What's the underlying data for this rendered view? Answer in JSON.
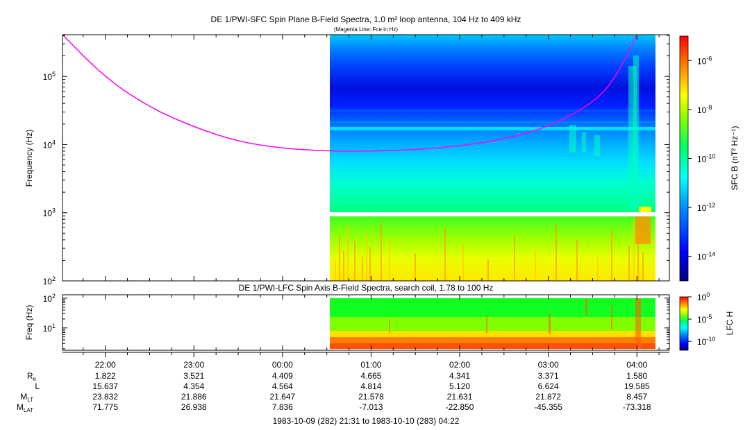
{
  "colors": {
    "fce_line": "#ff00ff",
    "gap": "#ffffff",
    "frame": "#000000"
  },
  "chart_data": [
    {
      "type": "heatmap",
      "title": "DE 1/PWI-SFC  Spin Plane B-Field Spectra, 1.0 m² loop antenna, 104 Hz to 409 kHz",
      "subtitle": "(Magenta Line: Fce in Hz)",
      "ylabel": "Frequency (Hz)",
      "yscale": "log",
      "ylim": [
        100,
        409000
      ],
      "y_ticks": [
        {
          "base": "10",
          "exp": "2"
        },
        {
          "base": "10",
          "exp": "3"
        },
        {
          "base": "10",
          "exp": "4"
        },
        {
          "base": "10",
          "exp": "5"
        }
      ],
      "colorbar": {
        "label": "SFC B (nT² Hz⁻¹)",
        "scale": "log",
        "range": [
          1e-15,
          1e-05
        ],
        "ticks": [
          {
            "base": "10",
            "exp": "-6"
          },
          {
            "base": "10",
            "exp": "-8"
          },
          {
            "base": "10",
            "exp": "-10"
          },
          {
            "base": "10",
            "exp": "-12"
          },
          {
            "base": "10",
            "exp": "-14"
          }
        ]
      },
      "data_start": "00:32",
      "data_end": "04:11",
      "gap_band_hz": [
        900,
        1000
      ],
      "fce_curve": [
        {
          "t": "21:31",
          "f_hz": 409000
        },
        {
          "t": "22:00",
          "f_hz": 95000
        },
        {
          "t": "22:30",
          "f_hz": 35000
        },
        {
          "t": "23:00",
          "f_hz": 18000
        },
        {
          "t": "23:30",
          "f_hz": 11000
        },
        {
          "t": "00:00",
          "f_hz": 8800
        },
        {
          "t": "00:30",
          "f_hz": 8000
        },
        {
          "t": "01:00",
          "f_hz": 8000
        },
        {
          "t": "01:30",
          "f_hz": 8400
        },
        {
          "t": "02:00",
          "f_hz": 9500
        },
        {
          "t": "02:30",
          "f_hz": 12000
        },
        {
          "t": "03:00",
          "f_hz": 18000
        },
        {
          "t": "03:30",
          "f_hz": 40000
        },
        {
          "t": "03:45",
          "f_hz": 90000
        },
        {
          "t": "04:00",
          "f_hz": 409000
        }
      ]
    },
    {
      "type": "heatmap",
      "title": "DE 1/PWI-LFC  Spin Axis B-Field Spectra, search coil, 1.78 to 100 Hz",
      "ylabel": "Freq (Hz)",
      "yscale": "log",
      "ylim": [
        1.78,
        130
      ],
      "y_ticks": [
        {
          "base": "10",
          "exp": "1"
        },
        {
          "base": "10",
          "exp": "2"
        }
      ],
      "colorbar": {
        "label": "LFC H",
        "scale": "log",
        "range": [
          1e-12,
          1
        ],
        "ticks": [
          {
            "base": "10",
            "exp": "0"
          },
          {
            "base": "10",
            "exp": "-5"
          },
          {
            "base": "10",
            "exp": "-10"
          }
        ]
      },
      "data_start": "00:32",
      "data_end": "04:11"
    }
  ],
  "time_axis": {
    "start": "21:31",
    "end": "04:22",
    "tick_labels": [
      "22:00",
      "23:00",
      "00:00",
      "01:00",
      "02:00",
      "03:00",
      "04:00"
    ]
  },
  "ephemeris": {
    "rows": [
      {
        "label": "R",
        "sub": "e",
        "values": [
          "1.822",
          "3.521",
          "4.409",
          "4.665",
          "4.341",
          "3.371",
          "1.580"
        ]
      },
      {
        "label": "L",
        "sub": "",
        "values": [
          "15.637",
          "4.354",
          "4.564",
          "4.814",
          "5.120",
          "6.624",
          "19.585"
        ]
      },
      {
        "label": "M",
        "sub": "LT",
        "values": [
          "23.832",
          "21.886",
          "21.647",
          "21.578",
          "21.631",
          "21.872",
          "8.457"
        ]
      },
      {
        "label": "M",
        "sub": "LAT",
        "values": [
          "71.775",
          "26.938",
          "7.836",
          "-7.013",
          "-22.850",
          "-45.355",
          "-73.318"
        ]
      }
    ]
  },
  "date_range": "1983-10-09 (282) 21:31 to 1983-10-10 (283) 04:22"
}
